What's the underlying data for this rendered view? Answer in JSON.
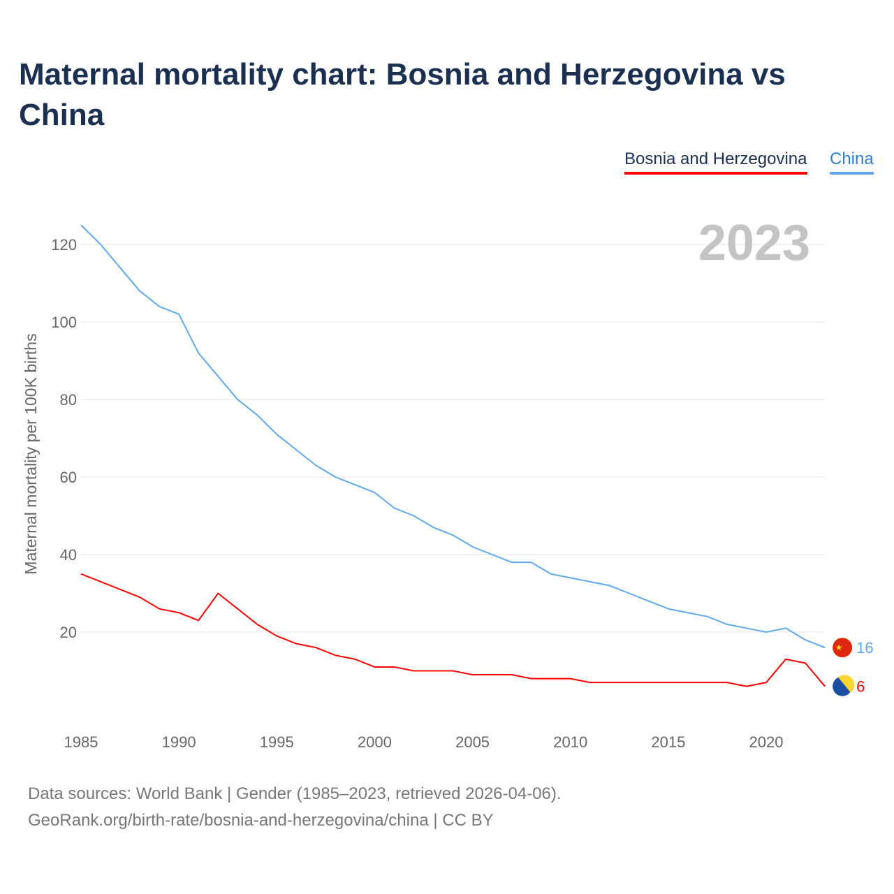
{
  "title": "Maternal mortality chart: Bosnia and Herzegovina vs China",
  "year_label": "2023",
  "footer": {
    "line1": "Data sources: World Bank | Gender (1985–2023, retrieved 2026-04-06).",
    "line2": "GeoRank.org/birth-rate/bosnia-and-herzegovina/china | CC BY"
  },
  "chart_data": {
    "type": "line",
    "title": "Maternal mortality chart: Bosnia and Herzegovina vs China",
    "xlabel": "",
    "ylabel": "Maternal mortality per 100K births",
    "xlim": [
      1985,
      2023
    ],
    "ylim": [
      0,
      128
    ],
    "xticks": [
      1985,
      1990,
      1995,
      2000,
      2005,
      2010,
      2015,
      2020
    ],
    "yticks": [
      20,
      40,
      60,
      80,
      100,
      120
    ],
    "grid": true,
    "legend_position": "top-right",
    "x": [
      1985,
      1986,
      1987,
      1988,
      1989,
      1990,
      1991,
      1992,
      1993,
      1994,
      1995,
      1996,
      1997,
      1998,
      1999,
      2000,
      2001,
      2002,
      2003,
      2004,
      2005,
      2006,
      2007,
      2008,
      2009,
      2010,
      2011,
      2012,
      2013,
      2014,
      2015,
      2016,
      2017,
      2018,
      2019,
      2020,
      2021,
      2022,
      2023
    ],
    "series": [
      {
        "name": "Bosnia and Herzegovina",
        "color": "#ff0000",
        "end_label": "6",
        "values": [
          35,
          33,
          31,
          29,
          26,
          25,
          23,
          30,
          26,
          22,
          19,
          17,
          16,
          14,
          13,
          11,
          11,
          10,
          10,
          10,
          9,
          9,
          9,
          8,
          8,
          8,
          7,
          7,
          7,
          7,
          7,
          7,
          7,
          7,
          6,
          7,
          13,
          12,
          6
        ]
      },
      {
        "name": "China",
        "color": "#5fa8f0",
        "end_label": "16",
        "values": [
          125,
          120,
          114,
          108,
          104,
          102,
          92,
          86,
          80,
          76,
          71,
          67,
          63,
          60,
          58,
          56,
          52,
          50,
          47,
          45,
          42,
          40,
          38,
          38,
          35,
          34,
          33,
          32,
          30,
          28,
          26,
          25,
          24,
          22,
          21,
          20,
          21,
          18,
          16
        ]
      }
    ]
  }
}
